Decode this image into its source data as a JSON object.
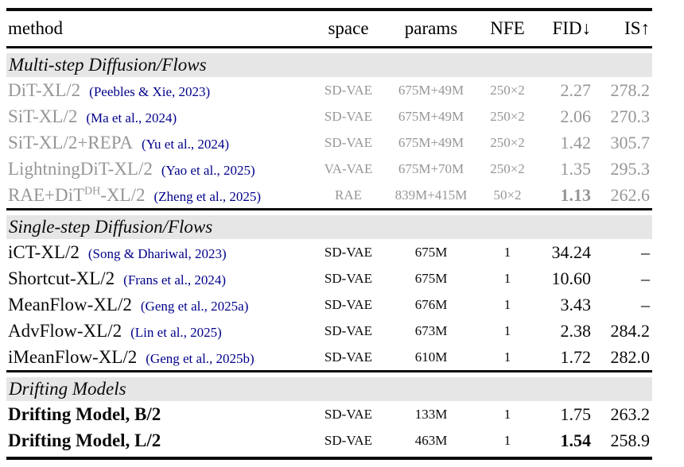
{
  "colors": {
    "text": "#0a0a0a",
    "muted_text": "#969696",
    "citation": "#00008B",
    "section_band_bg": "#e6e6e6"
  },
  "table": {
    "columns": {
      "method": "method",
      "space": "space",
      "params": "params",
      "nfe": "NFE",
      "fid": "FID↓",
      "is": "IS↑"
    },
    "sections": [
      {
        "title": "Multi-step Diffusion/Flows",
        "rows": [
          {
            "method": "DiT-XL/2",
            "citation": "(Peebles & Xie, 2023)",
            "space": "SD-VAE",
            "params": "675M+49M",
            "nfe": "250×2",
            "fid": "2.27",
            "is": "278.2"
          },
          {
            "method": "SiT-XL/2",
            "citation": "(Ma et al., 2024)",
            "space": "SD-VAE",
            "params": "675M+49M",
            "nfe": "250×2",
            "fid": "2.06",
            "is": "270.3"
          },
          {
            "method": "SiT-XL/2+REPA",
            "citation": "(Yu et al., 2024)",
            "space": "SD-VAE",
            "params": "675M+49M",
            "nfe": "250×2",
            "fid": "1.42",
            "is": "305.7"
          },
          {
            "method": "LightningDiT-XL/2",
            "citation": "(Yao et al., 2025)",
            "space": "VA-VAE",
            "params": "675M+70M",
            "nfe": "250×2",
            "fid": "1.35",
            "is": "295.3"
          },
          {
            "method": "RAE+DiT",
            "method_sup": "DH",
            "method_suffix": "-XL/2",
            "citation": "(Zheng et al., 2025)",
            "space": "RAE",
            "params": "839M+415M",
            "nfe": "50×2",
            "fid": "1.13",
            "is": "262.6"
          }
        ]
      },
      {
        "title": "Single-step Diffusion/Flows",
        "rows": [
          {
            "method": "iCT-XL/2",
            "citation": "(Song & Dhariwal, 2023)",
            "space": "SD-VAE",
            "params": "675M",
            "nfe": "1",
            "fid": "34.24",
            "is": "–"
          },
          {
            "method": "Shortcut-XL/2",
            "citation": "(Frans et al., 2024)",
            "space": "SD-VAE",
            "params": "675M",
            "nfe": "1",
            "fid": "10.60",
            "is": "–"
          },
          {
            "method": "MeanFlow-XL/2",
            "citation": "(Geng et al., 2025a)",
            "space": "SD-VAE",
            "params": "676M",
            "nfe": "1",
            "fid": "3.43",
            "is": "–"
          },
          {
            "method": "AdvFlow-XL/2",
            "citation": "(Lin et al., 2025)",
            "space": "SD-VAE",
            "params": "673M",
            "nfe": "1",
            "fid": "2.38",
            "is": "284.2"
          },
          {
            "method": "iMeanFlow-XL/2",
            "citation": "(Geng et al., 2025b)",
            "space": "SD-VAE",
            "params": "610M",
            "nfe": "1",
            "fid": "1.72",
            "is": "282.0"
          }
        ]
      },
      {
        "title": "Drifting Models",
        "rows": [
          {
            "method": "Drifting Model, B/2",
            "space": "SD-VAE",
            "params": "133M",
            "nfe": "1",
            "fid": "1.75",
            "is": "263.2"
          },
          {
            "method": "Drifting Model, L/2",
            "space": "SD-VAE",
            "params": "463M",
            "nfe": "1",
            "fid": "1.54",
            "is": "258.9"
          }
        ]
      }
    ]
  }
}
